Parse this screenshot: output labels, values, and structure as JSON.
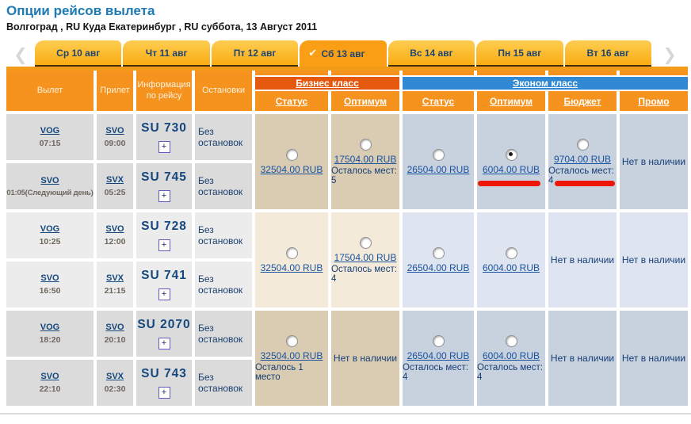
{
  "page": {
    "title": "Опции рейсов вылета",
    "subtitle": "Волгоград , RU Куда Екатеринбург , RU суббота, 13 Август 2011"
  },
  "colors": {
    "header_orange": "#f6921e",
    "business_band": "#e5590f",
    "economy_band": "#3089d2",
    "annotation_red": "#ed1607",
    "title_blue": "#1d7ab5",
    "active_tab": "#f99e15"
  },
  "icons": {
    "prev": "❮",
    "next": "❯",
    "check": "✔",
    "expand": "+"
  },
  "tabs": [
    {
      "label": "Ср 10 авг"
    },
    {
      "label": "Чт 11 авг"
    },
    {
      "label": "Пт 12 авг"
    },
    {
      "label": "Сб 13 авг",
      "active": true
    },
    {
      "label": "Вс 14 авг"
    },
    {
      "label": "Пн 15 авг"
    },
    {
      "label": "Вт 16 авг"
    }
  ],
  "table": {
    "columns": {
      "departure": "Вылет",
      "arrival": "Прилет",
      "info": "Информация по рейсу",
      "stops": "Остановки"
    },
    "business_class": "Бизнес класс",
    "economy_class": "Эконом класс",
    "subcolumns": [
      "Статус",
      "Оптимум",
      "Статус",
      "Оптимум",
      "Бюджет",
      "Промо"
    ]
  },
  "flights": [
    {
      "segments": [
        {
          "from": "VOG",
          "dep_time": "07:15",
          "to": "SVO",
          "arr_time": "09:00",
          "flight_no": "SU 730",
          "stops": "Без остановок"
        },
        {
          "from": "SVO",
          "dep_time": "01:05(Следующий день)",
          "to": "SVX",
          "arr_time": "05:25",
          "flight_no": "SU 745",
          "stops": "Без остановок"
        }
      ],
      "fares": [
        {
          "price": "32504.00 RUB",
          "note": ""
        },
        {
          "price": "17504.00 RUB",
          "note": "Осталось мест: 5"
        },
        {
          "price": "26504.00 RUB",
          "note": ""
        },
        {
          "price": "6004.00 RUB",
          "note": "",
          "selected": true
        },
        {
          "price": "9704.00 RUB",
          "note": "Осталось мест: 4"
        },
        {
          "unavailable": "Нет в наличии"
        }
      ]
    },
    {
      "segments": [
        {
          "from": "VOG",
          "dep_time": "10:25",
          "to": "SVO",
          "arr_time": "12:00",
          "flight_no": "SU 728",
          "stops": "Без остановок"
        },
        {
          "from": "SVO",
          "dep_time": "16:50",
          "to": "SVX",
          "arr_time": "21:15",
          "flight_no": "SU 741",
          "stops": "Без остановок"
        }
      ],
      "fares": [
        {
          "price": "32504.00 RUB",
          "note": ""
        },
        {
          "price": "17504.00 RUB",
          "note": "Осталось мест: 4"
        },
        {
          "price": "26504.00 RUB",
          "note": ""
        },
        {
          "price": "6004.00 RUB",
          "note": ""
        },
        {
          "unavailable": "Нет в наличии"
        },
        {
          "unavailable": "Нет в наличии"
        }
      ]
    },
    {
      "segments": [
        {
          "from": "VOG",
          "dep_time": "18:20",
          "to": "SVO",
          "arr_time": "20:10",
          "flight_no": "SU 2070",
          "stops": "Без остановок"
        },
        {
          "from": "SVO",
          "dep_time": "22:10",
          "to": "SVX",
          "arr_time": "02:30",
          "flight_no": "SU 743",
          "stops": "Без остановок"
        }
      ],
      "fares": [
        {
          "price": "32504.00 RUB",
          "note": "Осталось 1 место"
        },
        {
          "unavailable": "Нет в наличии"
        },
        {
          "price": "26504.00 RUB",
          "note": "Осталось мест: 4"
        },
        {
          "price": "6004.00 RUB",
          "note": "Осталось мест: 4"
        },
        {
          "unavailable": "Нет в наличии"
        },
        {
          "unavailable": "Нет в наличии"
        }
      ]
    }
  ]
}
